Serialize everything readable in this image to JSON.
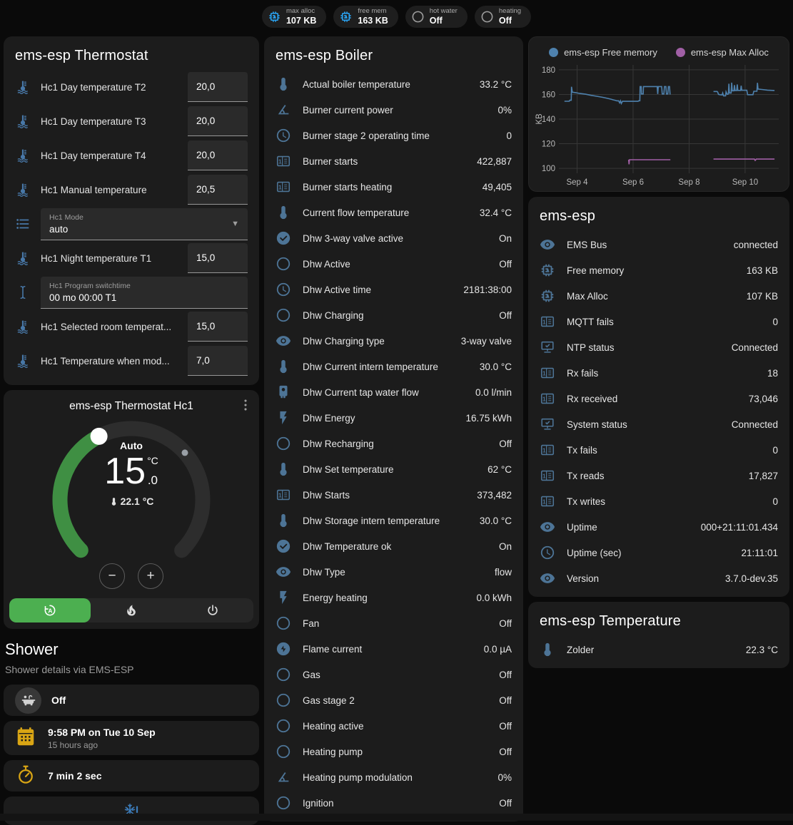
{
  "header_badges": [
    {
      "label": "max alloc",
      "value": "107 KB",
      "icon": "chip",
      "icon_color": "#2aa3f2"
    },
    {
      "label": "free mem",
      "value": "163 KB",
      "icon": "chip",
      "icon_color": "#2aa3f2"
    },
    {
      "label": "hot water",
      "value": "Off",
      "icon": "circle",
      "icon_color": "#9e9e9e"
    },
    {
      "label": "heating",
      "value": "Off",
      "icon": "circle",
      "icon_color": "#9e9e9e"
    }
  ],
  "thermostat_card": {
    "title": "ems-esp Thermostat",
    "rows": [
      {
        "type": "number",
        "icon": "coolant-thermometer",
        "label": "Hc1 Day temperature T2",
        "value": "20,0"
      },
      {
        "type": "number",
        "icon": "coolant-thermometer",
        "label": "Hc1 Day temperature T3",
        "value": "20,0"
      },
      {
        "type": "number",
        "icon": "coolant-thermometer",
        "label": "Hc1 Day temperature T4",
        "value": "20,0"
      },
      {
        "type": "number",
        "icon": "coolant-thermometer",
        "label": "Hc1 Manual temperature",
        "value": "20,5"
      },
      {
        "type": "select",
        "icon": "format-list",
        "label": "Hc1 Mode",
        "value": "auto"
      },
      {
        "type": "number",
        "icon": "coolant-thermometer",
        "label": "Hc1 Night temperature T1",
        "value": "15,0"
      },
      {
        "type": "text",
        "icon": "cursor-text",
        "label": "Hc1 Program switchtime",
        "value": "00 mo 00:00 T1"
      },
      {
        "type": "number",
        "icon": "coolant-thermometer",
        "label": "Hc1 Selected room temperat...",
        "value": "15,0"
      },
      {
        "type": "number",
        "icon": "coolant-thermometer",
        "label": "Hc1 Temperature when mod...",
        "value": "7,0"
      }
    ]
  },
  "dial_card": {
    "title": "ems-esp Thermostat Hc1",
    "mode": "Auto",
    "target_int": "15",
    "target_dec": ".0",
    "target_unit": "°C",
    "current": "22.1 °C",
    "minus_label": "−",
    "plus_label": "+",
    "accent": "#3f8f43",
    "modes": [
      {
        "name": "auto",
        "active": true
      },
      {
        "name": "fire",
        "active": false
      },
      {
        "name": "power",
        "active": false
      }
    ]
  },
  "shower": {
    "heading": "Shower",
    "subtitle": "Shower details via EMS-ESP",
    "cards": [
      {
        "icon": "bathtub",
        "icon_color": "#d2d2d2",
        "circle": true,
        "title": "Off"
      },
      {
        "icon": "calendar",
        "icon_color": "#d9a514",
        "title": "9:58 PM on Tue 10 Sep",
        "subtitle": "15 hours ago"
      },
      {
        "icon": "timer",
        "icon_color": "#d9a514",
        "title": "7 min 2 sec"
      },
      {
        "icon": "snowflake-alert",
        "icon_color": "#3c7cba",
        "centered": true,
        "title": ""
      }
    ]
  },
  "boiler_card": {
    "title": "ems-esp Boiler",
    "rows": [
      {
        "icon": "thermometer",
        "label": "Actual boiler temperature",
        "value": "33.2 °C"
      },
      {
        "icon": "angle-acute",
        "label": "Burner current power",
        "value": "0%"
      },
      {
        "icon": "clock",
        "label": "Burner stage 2 operating time",
        "value": "0"
      },
      {
        "icon": "counter",
        "label": "Burner starts",
        "value": "422,887"
      },
      {
        "icon": "counter",
        "label": "Burner starts heating",
        "value": "49,405"
      },
      {
        "icon": "thermometer",
        "label": "Current flow temperature",
        "value": "32.4 °C"
      },
      {
        "icon": "check-circle",
        "label": "Dhw 3-way valve active",
        "value": "On"
      },
      {
        "icon": "circle",
        "label": "Dhw Active",
        "value": "Off"
      },
      {
        "icon": "clock",
        "label": "Dhw Active time",
        "value": "2181:38:00"
      },
      {
        "icon": "circle",
        "label": "Dhw Charging",
        "value": "Off"
      },
      {
        "icon": "eye",
        "label": "Dhw Charging type",
        "value": "3-way valve"
      },
      {
        "icon": "thermometer",
        "label": "Dhw Current intern temperature",
        "value": "30.0 °C"
      },
      {
        "icon": "water-boiler",
        "label": "Dhw Current tap water flow",
        "value": "0.0 l/min"
      },
      {
        "icon": "flash",
        "label": "Dhw Energy",
        "value": "16.75 kWh"
      },
      {
        "icon": "circle",
        "label": "Dhw Recharging",
        "value": "Off"
      },
      {
        "icon": "thermometer",
        "label": "Dhw Set temperature",
        "value": "62 °C"
      },
      {
        "icon": "counter",
        "label": "Dhw Starts",
        "value": "373,482"
      },
      {
        "icon": "thermometer",
        "label": "Dhw Storage intern temperature",
        "value": "30.0 °C"
      },
      {
        "icon": "check-circle",
        "label": "Dhw Temperature ok",
        "value": "On"
      },
      {
        "icon": "eye",
        "label": "Dhw Type",
        "value": "flow"
      },
      {
        "icon": "flash",
        "label": "Energy heating",
        "value": "0.0 kWh"
      },
      {
        "icon": "circle",
        "label": "Fan",
        "value": "Off"
      },
      {
        "icon": "flash-circle",
        "label": "Flame current",
        "value": "0.0 µA"
      },
      {
        "icon": "circle",
        "label": "Gas",
        "value": "Off"
      },
      {
        "icon": "circle",
        "label": "Gas stage 2",
        "value": "Off"
      },
      {
        "icon": "circle",
        "label": "Heating active",
        "value": "Off"
      },
      {
        "icon": "circle",
        "label": "Heating pump",
        "value": "Off"
      },
      {
        "icon": "angle-acute",
        "label": "Heating pump modulation",
        "value": "0%"
      },
      {
        "icon": "circle",
        "label": "Ignition",
        "value": "Off"
      }
    ]
  },
  "emsesp_card": {
    "title": "ems-esp",
    "rows": [
      {
        "icon": "eye",
        "label": "EMS Bus",
        "value": "connected"
      },
      {
        "icon": "chip",
        "label": "Free memory",
        "value": "163 KB"
      },
      {
        "icon": "chip",
        "label": "Max Alloc",
        "value": "107 KB"
      },
      {
        "icon": "counter",
        "label": "MQTT fails",
        "value": "0"
      },
      {
        "icon": "network-check",
        "label": "NTP status",
        "value": "Connected"
      },
      {
        "icon": "counter",
        "label": "Rx fails",
        "value": "18"
      },
      {
        "icon": "counter",
        "label": "Rx received",
        "value": "73,046"
      },
      {
        "icon": "network-check",
        "label": "System status",
        "value": "Connected"
      },
      {
        "icon": "counter",
        "label": "Tx fails",
        "value": "0"
      },
      {
        "icon": "counter",
        "label": "Tx reads",
        "value": "17,827"
      },
      {
        "icon": "counter",
        "label": "Tx writes",
        "value": "0"
      },
      {
        "icon": "eye",
        "label": "Uptime",
        "value": "000+21:11:01.434"
      },
      {
        "icon": "clock",
        "label": "Uptime (sec)",
        "value": "21:11:01"
      },
      {
        "icon": "eye",
        "label": "Version",
        "value": "3.7.0-dev.35"
      }
    ]
  },
  "temperature_card": {
    "title": "ems-esp Temperature",
    "rows": [
      {
        "icon": "thermometer",
        "label": "Zolder",
        "value": "22.3 °C"
      }
    ]
  },
  "chart_data": {
    "type": "line",
    "title": "",
    "xlabel": "",
    "ylabel": "KB",
    "xlim": [
      3.35,
      11.2
    ],
    "ylim": [
      96,
      184
    ],
    "yticks": [
      100,
      120,
      140,
      160,
      180
    ],
    "xticks": [
      {
        "x": 4,
        "label": "Sep 4"
      },
      {
        "x": 6,
        "label": "Sep 6"
      },
      {
        "x": 8,
        "label": "Sep 8"
      },
      {
        "x": 10,
        "label": "Sep 10"
      }
    ],
    "grid": true,
    "legend_position": "top",
    "series": [
      {
        "name": "ems-esp Free memory",
        "color": "#4e81ad",
        "segments": [
          [
            [
              3.55,
              154.5
            ],
            [
              3.72,
              154.5
            ],
            [
              3.74,
              155.3
            ],
            [
              3.79,
              155.3
            ],
            [
              3.8,
              166.2
            ],
            [
              3.83,
              161.8
            ],
            [
              3.95,
              161.5
            ],
            [
              4.1,
              160.8
            ],
            [
              4.3,
              160.2
            ],
            [
              4.5,
              159.3
            ],
            [
              4.7,
              158.5
            ],
            [
              4.9,
              157.7
            ],
            [
              5.05,
              157.0
            ],
            [
              5.2,
              156.2
            ],
            [
              5.3,
              155.6
            ],
            [
              5.38,
              155.1
            ],
            [
              5.42,
              154.8
            ],
            [
              5.48,
              154.9
            ],
            [
              5.52,
              153.2
            ],
            [
              5.55,
              154.9
            ],
            [
              5.58,
              152.6
            ],
            [
              5.62,
              154.4
            ],
            [
              5.7,
              154.4
            ],
            [
              6.18,
              154.4
            ],
            [
              6.2,
              154.9
            ],
            [
              6.24,
              154.9
            ],
            [
              6.25,
              166.4
            ],
            [
              6.29,
              166.4
            ],
            [
              6.3,
              160.4
            ],
            [
              6.36,
              160.4
            ],
            [
              6.37,
              166.4
            ],
            [
              6.86,
              166.4
            ],
            [
              6.88,
              160.4
            ],
            [
              6.9,
              166.4
            ],
            [
              7.02,
              166.4
            ],
            [
              7.04,
              160.4
            ],
            [
              7.1,
              160.4
            ],
            [
              7.12,
              166.4
            ],
            [
              7.17,
              166.4
            ],
            [
              7.19,
              160.4
            ],
            [
              7.24,
              160.4
            ],
            [
              7.26,
              166.4
            ],
            [
              7.3,
              166.4
            ],
            [
              7.32,
              159.9
            ]
          ],
          [
            [
              8.87,
              162.4
            ],
            [
              9.0,
              162.4
            ],
            [
              9.02,
              161.9
            ],
            [
              9.05,
              160.1
            ],
            [
              9.1,
              159.8
            ],
            [
              9.18,
              159.6
            ],
            [
              9.2,
              161.2
            ],
            [
              9.23,
              158.9
            ],
            [
              9.3,
              158.9
            ],
            [
              9.32,
              162.2
            ],
            [
              9.36,
              160.1
            ],
            [
              9.4,
              160.3
            ],
            [
              9.42,
              168.7
            ],
            [
              9.44,
              161.2
            ],
            [
              9.5,
              161.2
            ],
            [
              9.52,
              169.6
            ],
            [
              9.54,
              163.0
            ],
            [
              9.6,
              163.0
            ],
            [
              9.62,
              167.6
            ],
            [
              9.64,
              163.2
            ],
            [
              9.7,
              163.2
            ],
            [
              9.72,
              168.1
            ],
            [
              9.74,
              163.3
            ],
            [
              9.84,
              163.3
            ],
            [
              9.86,
              167.1
            ],
            [
              9.88,
              163.4
            ],
            [
              10.06,
              163.4
            ],
            [
              10.09,
              159.8
            ],
            [
              10.28,
              159.8
            ],
            [
              10.31,
              162.6
            ],
            [
              10.42,
              162.6
            ],
            [
              10.44,
              169.4
            ],
            [
              10.46,
              164.4
            ],
            [
              10.6,
              164.0
            ],
            [
              10.8,
              163.5
            ],
            [
              11.05,
              163.2
            ]
          ]
        ]
      },
      {
        "name": "ems-esp Max Alloc",
        "color": "#a05fa5",
        "segments": [
          [
            [
              5.84,
              107.0
            ],
            [
              5.855,
              103.3
            ],
            [
              5.87,
              107.0
            ],
            [
              7.33,
              107.0
            ]
          ],
          [
            [
              8.87,
              107.5
            ],
            [
              10.33,
              107.5
            ],
            [
              10.36,
              106.4
            ],
            [
              10.4,
              107.5
            ],
            [
              11.05,
              107.5
            ]
          ]
        ]
      }
    ]
  }
}
